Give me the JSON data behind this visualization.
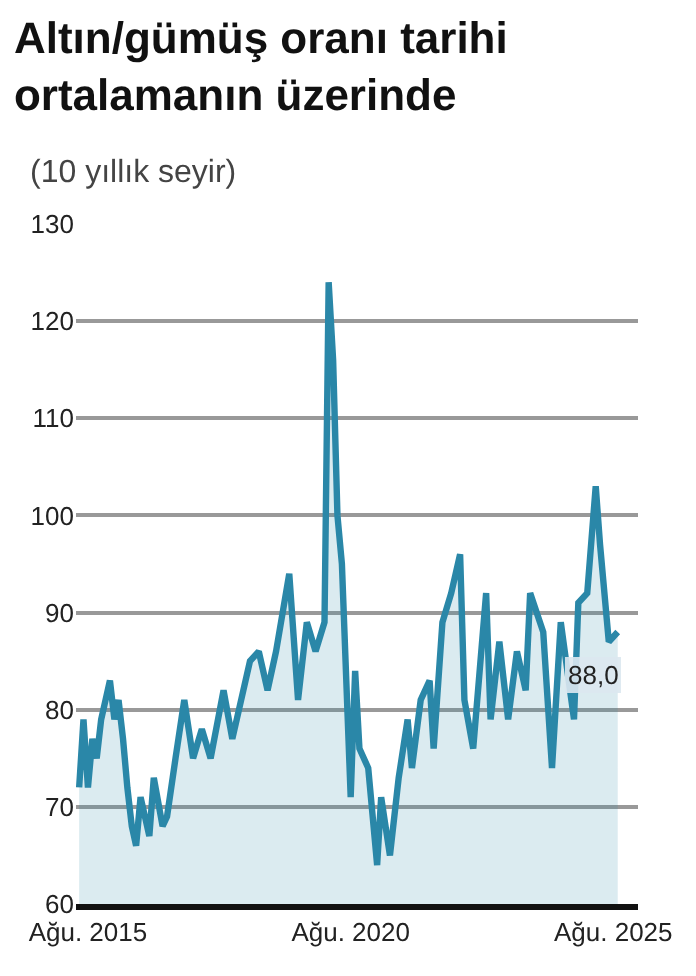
{
  "chart_data": {
    "type": "area",
    "title": "Altın/gümüş oranı tarihi ortalamanın üzerinde",
    "subtitle": "(10 yıllık seyir)",
    "x": [
      "2015-06",
      "2015-07",
      "2015-08",
      "2015-09",
      "2015-10",
      "2015-11",
      "2016-01",
      "2016-02",
      "2016-03",
      "2016-04",
      "2016-05",
      "2016-06",
      "2016-07",
      "2016-08",
      "2016-10",
      "2016-11",
      "2017-01",
      "2017-02",
      "2017-04",
      "2017-06",
      "2017-08",
      "2017-10",
      "2017-12",
      "2018-03",
      "2018-05",
      "2018-09",
      "2018-11",
      "2019-01",
      "2019-03",
      "2019-06",
      "2019-08",
      "2019-10",
      "2019-12",
      "2020-02",
      "2020-03",
      "2020-04",
      "2020-05",
      "2020-06",
      "2020-08",
      "2020-09",
      "2020-10",
      "2020-12",
      "2021-02",
      "2021-03",
      "2021-05",
      "2021-07",
      "2021-09",
      "2021-10",
      "2021-12",
      "2022-02",
      "2022-03",
      "2022-05",
      "2022-07",
      "2022-09",
      "2022-10",
      "2022-12",
      "2023-03",
      "2023-04",
      "2023-06",
      "2023-08",
      "2023-10",
      "2023-12",
      "2024-01",
      "2024-04",
      "2024-06",
      "2024-08",
      "2024-11",
      "2024-12",
      "2025-02",
      "2025-04",
      "2025-05",
      "2025-07",
      "2025-09"
    ],
    "series": [
      {
        "color": "#2a87a8",
        "values": [
          72,
          79,
          72,
          77,
          75,
          79,
          83,
          79,
          81,
          77,
          72,
          68,
          66,
          71,
          67,
          73,
          68,
          69,
          75,
          81,
          75,
          78,
          75,
          82,
          77,
          85,
          86,
          82,
          86,
          94,
          81,
          89,
          86,
          89,
          124,
          116,
          100,
          95,
          71,
          84,
          76,
          74,
          64,
          71,
          65,
          73,
          79,
          74,
          81,
          83,
          76,
          89,
          92,
          96,
          81,
          76,
          92,
          79,
          87,
          79,
          86,
          82,
          92,
          88,
          74,
          89,
          79,
          91,
          92,
          103,
          97,
          87,
          88
        ]
      }
    ],
    "ylim": [
      60,
      130
    ],
    "yticks": [
      60,
      70,
      80,
      90,
      100,
      110,
      120,
      130
    ],
    "xlim": [
      "2015-05-10",
      "2026-01-20"
    ],
    "xticks": [
      {
        "value": "2015-08-01",
        "label": "Ağu. 2015"
      },
      {
        "value": "2020-08-01",
        "label": "Ağu. 2020"
      },
      {
        "value": "2025-08-01",
        "label": "Ağu. 2025"
      }
    ],
    "annotations": [
      {
        "text": "88,0",
        "x": "2025-09",
        "y": 88
      }
    ],
    "grid": "y",
    "legend": false,
    "marker": "none",
    "line_style": "solid"
  }
}
